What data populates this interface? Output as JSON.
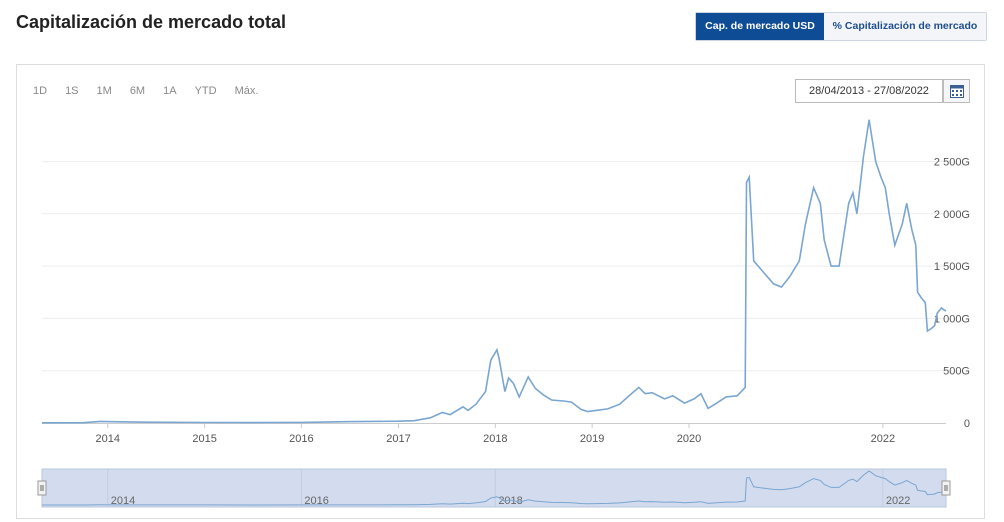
{
  "page": {
    "title": "Capitalización de mercado total"
  },
  "tabs": [
    {
      "label": "Cap. de mercado USD",
      "active": true
    },
    {
      "label": "% Capitalización de mercado",
      "active": false
    }
  ],
  "range_buttons": [
    "1D",
    "1S",
    "1M",
    "6M",
    "1A",
    "YTD",
    "Máx."
  ],
  "date_range": "28/04/2013 - 27/08/2022",
  "icons": {
    "calendar": "calendar-icon"
  },
  "colors": {
    "line": "#7aa6d1",
    "accent": "#0f4c96",
    "navigator_fill": "#d3dbee"
  },
  "chart_data": {
    "type": "line",
    "title": "",
    "xlabel": "",
    "ylabel": "",
    "x_ticks": [
      "2014",
      "2015",
      "2016",
      "2017",
      "2018",
      "2019",
      "2020",
      "2022"
    ],
    "y_ticks": [
      "0",
      "500G",
      "1 000G",
      "1 500G",
      "2 000G",
      "2 500G"
    ],
    "ylim": [
      0,
      2900
    ],
    "xlim": [
      "2013-04-28",
      "2022-08-27"
    ],
    "navigator_ticks": [
      "2014",
      "2016",
      "2018",
      "2022"
    ],
    "series": [
      {
        "values": [
          [
            "2013-04-28",
            2
          ],
          [
            "2013-10-01",
            3
          ],
          [
            "2013-12-05",
            15
          ],
          [
            "2014-01-15",
            12
          ],
          [
            "2014-06-01",
            8
          ],
          [
            "2015-01-15",
            5
          ],
          [
            "2015-07-01",
            4
          ],
          [
            "2016-01-01",
            6
          ],
          [
            "2016-06-15",
            12
          ],
          [
            "2017-01-01",
            17
          ],
          [
            "2017-03-01",
            22
          ],
          [
            "2017-05-01",
            50
          ],
          [
            "2017-06-15",
            100
          ],
          [
            "2017-07-15",
            80
          ],
          [
            "2017-09-01",
            155
          ],
          [
            "2017-09-20",
            120
          ],
          [
            "2017-10-20",
            180
          ],
          [
            "2017-11-25",
            300
          ],
          [
            "2017-12-15",
            600
          ],
          [
            "2018-01-07",
            700
          ],
          [
            "2018-01-15",
            620
          ],
          [
            "2018-02-06",
            300
          ],
          [
            "2018-02-20",
            430
          ],
          [
            "2018-03-10",
            380
          ],
          [
            "2018-04-01",
            250
          ],
          [
            "2018-05-05",
            440
          ],
          [
            "2018-06-01",
            330
          ],
          [
            "2018-07-01",
            270
          ],
          [
            "2018-08-01",
            220
          ],
          [
            "2018-09-15",
            210
          ],
          [
            "2018-10-15",
            200
          ],
          [
            "2018-11-20",
            130
          ],
          [
            "2018-12-15",
            110
          ],
          [
            "2019-01-15",
            120
          ],
          [
            "2019-03-01",
            135
          ],
          [
            "2019-04-15",
            180
          ],
          [
            "2019-05-20",
            260
          ],
          [
            "2019-06-26",
            340
          ],
          [
            "2019-07-20",
            280
          ],
          [
            "2019-08-15",
            290
          ],
          [
            "2019-10-01",
            230
          ],
          [
            "2019-11-01",
            260
          ],
          [
            "2019-12-15",
            190
          ],
          [
            "2020-01-20",
            230
          ],
          [
            "2020-02-15",
            280
          ],
          [
            "2020-03-13",
            140
          ],
          [
            "2020-04-15",
            190
          ],
          [
            "2020-05-20",
            250
          ],
          [
            "2020-07-01",
            260
          ],
          [
            "2020-07-31",
            340
          ],
          [
            "2020-08-05",
            2300
          ],
          [
            "2020-08-15",
            2350
          ],
          [
            "2020-09-01",
            1550
          ],
          [
            "2020-10-15",
            1420
          ],
          [
            "2020-11-15",
            1330
          ],
          [
            "2020-12-15",
            1300
          ],
          [
            "2021-01-15",
            1400
          ],
          [
            "2021-02-20",
            1550
          ],
          [
            "2021-03-15",
            1900
          ],
          [
            "2021-04-15",
            2250
          ],
          [
            "2021-05-10",
            2100
          ],
          [
            "2021-05-25",
            1750
          ],
          [
            "2021-06-20",
            1500
          ],
          [
            "2021-07-20",
            1500
          ],
          [
            "2021-08-25",
            2100
          ],
          [
            "2021-09-10",
            2200
          ],
          [
            "2021-09-25",
            2000
          ],
          [
            "2021-10-20",
            2550
          ],
          [
            "2021-11-10",
            2900
          ],
          [
            "2021-12-05",
            2500
          ],
          [
            "2021-12-25",
            2350
          ],
          [
            "2022-01-10",
            2250
          ],
          [
            "2022-01-25",
            2000
          ],
          [
            "2022-02-15",
            1700
          ],
          [
            "2022-03-01",
            1800
          ],
          [
            "2022-03-15",
            1900
          ],
          [
            "2022-04-01",
            2100
          ],
          [
            "2022-04-20",
            1850
          ],
          [
            "2022-05-05",
            1700
          ],
          [
            "2022-05-12",
            1250
          ],
          [
            "2022-05-25",
            1200
          ],
          [
            "2022-06-10",
            1150
          ],
          [
            "2022-06-18",
            880
          ],
          [
            "2022-07-01",
            900
          ],
          [
            "2022-07-15",
            930
          ],
          [
            "2022-07-25",
            1050
          ],
          [
            "2022-08-10",
            1100
          ],
          [
            "2022-08-20",
            1080
          ],
          [
            "2022-08-27",
            1070
          ]
        ]
      }
    ]
  }
}
